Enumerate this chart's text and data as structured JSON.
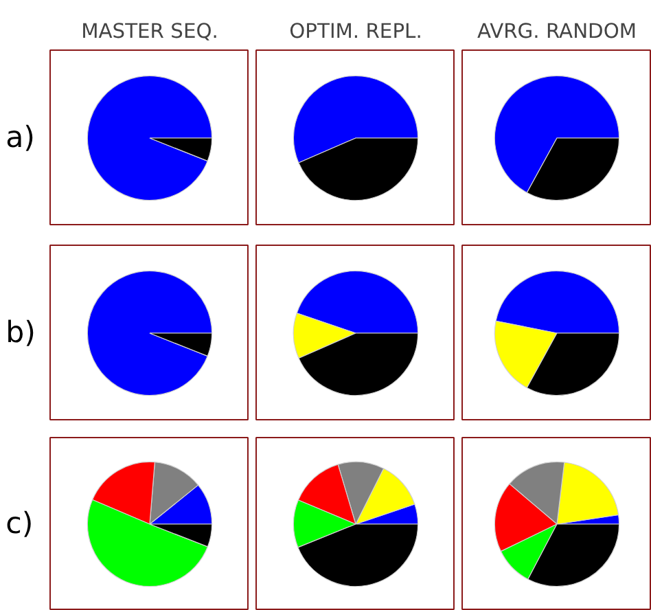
{
  "chart_data": [
    {
      "type": "pie",
      "title": "MASTER SEQ.",
      "annotations": [
        "a)"
      ],
      "categories": [
        null,
        null
      ],
      "values": [
        94,
        6
      ],
      "colors": [
        "#0000ff",
        "#000000"
      ]
    },
    {
      "type": "pie",
      "title": "OPTIM. REPL.",
      "categories": [
        null,
        null
      ],
      "values": [
        56.5,
        43.5
      ],
      "colors": [
        "#0000ff",
        "#000000"
      ]
    },
    {
      "type": "pie",
      "title": "AVRG. RANDOM",
      "categories": [
        null,
        null
      ],
      "values": [
        67,
        33
      ],
      "colors": [
        "#0000ff",
        "#000000"
      ]
    },
    {
      "type": "pie",
      "annotations": [
        "b)"
      ],
      "categories": [
        null,
        null
      ],
      "values": [
        94,
        6
      ],
      "colors": [
        "#0000ff",
        "#000000"
      ]
    },
    {
      "type": "pie",
      "categories": [
        null,
        null,
        null
      ],
      "values": [
        44.8,
        11.8,
        43.4
      ],
      "colors": [
        "#0000ff",
        "#ffff00",
        "#000000"
      ]
    },
    {
      "type": "pie",
      "categories": [
        null,
        null,
        null
      ],
      "values": [
        46.9,
        20.1,
        33.0
      ],
      "colors": [
        "#0000ff",
        "#ffff00",
        "#000000"
      ]
    },
    {
      "type": "pie",
      "annotations": [
        "c)"
      ],
      "categories": [
        null,
        null,
        null,
        null,
        null
      ],
      "values": [
        10.8,
        12.9,
        19.9,
        50.5,
        5.9
      ],
      "colors": [
        "#0000ff",
        "#808080",
        "#ff0000",
        "#00ff00",
        "#000000"
      ]
    },
    {
      "type": "pie",
      "categories": [
        null,
        null,
        null,
        null,
        null,
        null
      ],
      "values": [
        5.2,
        12.4,
        12.0,
        14.1,
        12.4,
        43.9
      ],
      "colors": [
        "#0000ff",
        "#ffff00",
        "#808080",
        "#ff0000",
        "#00ff00",
        "#000000"
      ]
    },
    {
      "type": "pie",
      "categories": [
        null,
        null,
        null,
        null,
        null,
        null
      ],
      "values": [
        2.4,
        20.7,
        15.7,
        18.4,
        10.1,
        32.7
      ],
      "colors": [
        "#0000ff",
        "#ffff00",
        "#808080",
        "#ff0000",
        "#00ff00",
        "#000000"
      ]
    }
  ]
}
